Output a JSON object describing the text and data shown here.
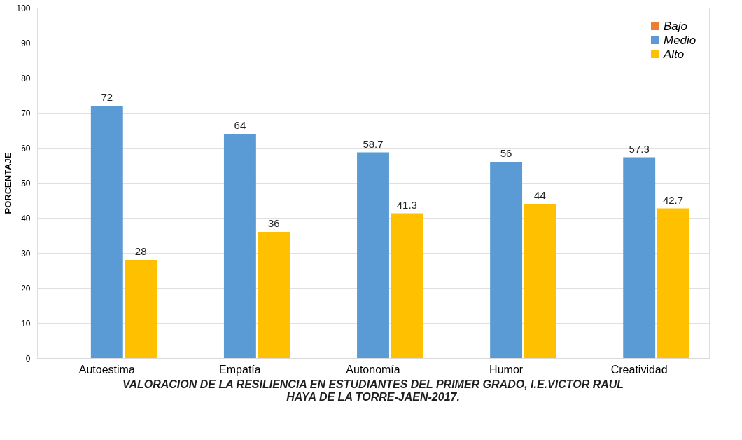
{
  "chart_data": {
    "type": "bar",
    "title": "VALORACION DE LA RESILIENCIA EN ESTUDIANTES DEL PRIMER GRADO, I.E.VICTOR RAUL\nHAYA DE LA TORRE-JAEN-2017.",
    "ylabel": "PORCENTAJE",
    "categories": [
      "Autoestima",
      "Empatía",
      "Autonomía",
      "Humor",
      "Creatividad"
    ],
    "series": [
      {
        "name": "Bajo",
        "color": "#ed7d31",
        "values": [
          0,
          0,
          0,
          0,
          0
        ],
        "value_labels": [
          null,
          null,
          null,
          null,
          null
        ]
      },
      {
        "name": "Medio",
        "color": "#5b9bd5",
        "values": [
          72,
          64,
          58.7,
          56,
          57.3
        ],
        "value_labels": [
          "72",
          "64",
          "58.7",
          "56",
          "57.3"
        ]
      },
      {
        "name": "Alto",
        "color": "#ffc000",
        "values": [
          28,
          36,
          41.3,
          44,
          42.7
        ],
        "value_labels": [
          "28",
          "36",
          "41.3",
          "44",
          "42.7"
        ]
      }
    ],
    "ylim": [
      0,
      100
    ],
    "yticks": [
      0,
      10,
      20,
      30,
      40,
      50,
      60,
      70,
      80,
      90,
      100
    ],
    "grid": "y",
    "legend": "top right"
  }
}
